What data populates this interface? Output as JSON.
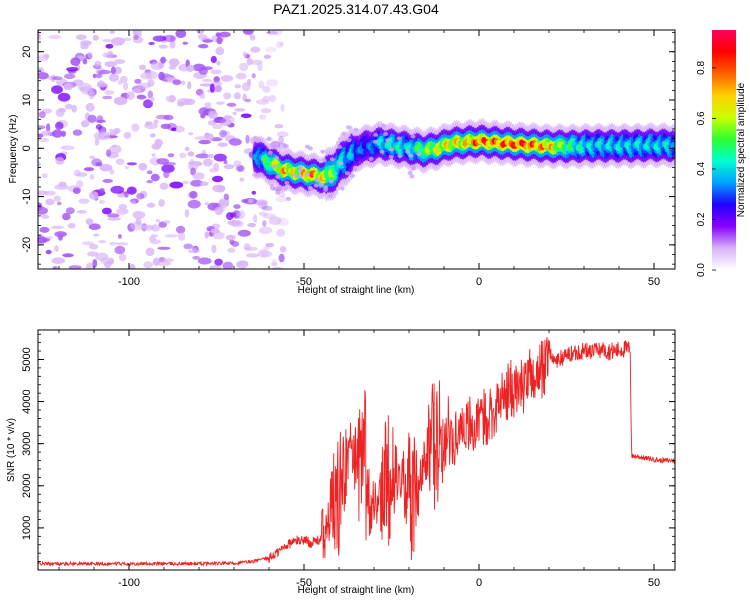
{
  "figure": {
    "title": "PAZ1.2025.314.07.43.G04"
  },
  "chart_data": [
    {
      "type": "heatmap",
      "title": "",
      "xlabel": "Height of straight line (km)",
      "ylabel": "Frequency (Hz)",
      "xlim": [
        -126,
        56
      ],
      "ylim": [
        -25,
        24.5
      ],
      "xticks": [
        -100,
        -50,
        0,
        50
      ],
      "yticks": [
        -20,
        -10,
        0,
        10,
        20
      ],
      "xtick_labels": [
        "-100",
        "-50",
        "0",
        "50"
      ],
      "ytick_labels": [
        "-20",
        "-10",
        "0",
        "10",
        "20"
      ],
      "noise_region_x": [
        -126,
        -60
      ],
      "ridge": {
        "x": [
          -64,
          -60,
          -56,
          -52,
          -48,
          -44,
          -41,
          -39,
          -36,
          -34,
          -31,
          -28,
          -24,
          -20,
          -16,
          -12,
          -8,
          -4,
          0,
          4,
          8,
          12,
          16,
          20,
          24,
          28,
          32,
          36,
          40,
          44,
          48,
          52,
          56
        ],
        "y": [
          -1.5,
          -3.0,
          -4.5,
          -5.0,
          -5.5,
          -6.0,
          -4.5,
          -2.5,
          -1.0,
          0.0,
          0.5,
          1.0,
          0.5,
          0.0,
          -0.5,
          0.0,
          1.0,
          1.2,
          1.5,
          1.2,
          1.0,
          0.8,
          0.6,
          0.4,
          0.4,
          0.4,
          0.5,
          0.5,
          0.5,
          0.5,
          0.6,
          0.6,
          0.6
        ],
        "amplitude": [
          0.35,
          0.6,
          0.8,
          0.7,
          0.85,
          0.7,
          0.55,
          0.45,
          0.4,
          0.35,
          0.35,
          0.45,
          0.5,
          0.45,
          0.6,
          0.7,
          0.75,
          0.75,
          0.9,
          0.85,
          0.9,
          0.95,
          0.85,
          0.8,
          0.6,
          0.5,
          0.45,
          0.45,
          0.45,
          0.45,
          0.45,
          0.45,
          0.45
        ]
      },
      "colorbar": {
        "label": "Normalized spectral amplitude",
        "range": [
          0,
          0.95
        ],
        "ticks": [
          0.0,
          0.2,
          0.4,
          0.6,
          0.8
        ],
        "tick_labels": [
          "0.0",
          "0.2",
          "0.4",
          "0.6",
          "0.8"
        ],
        "colors": [
          "#ffffff",
          "#d8b4f8",
          "#8a00ff",
          "#2000ff",
          "#00a0ff",
          "#00ffd0",
          "#30ff30",
          "#ccff00",
          "#ffd000",
          "#ff6000",
          "#ff0000",
          "#ff0060"
        ]
      }
    },
    {
      "type": "line",
      "title": "",
      "xlabel": "Height of straight line (km)",
      "ylabel": "SNR (10 * v/v)",
      "xlim": [
        -126,
        56
      ],
      "ylim": [
        0,
        5700
      ],
      "xticks": [
        -100,
        -50,
        0,
        50
      ],
      "yticks": [
        1000,
        2000,
        3000,
        4000,
        5000
      ],
      "xtick_labels": [
        "-100",
        "-50",
        "0",
        "50"
      ],
      "ytick_labels": [
        "1000",
        "2000",
        "3000",
        "4000",
        "5000"
      ],
      "color": "#ee2222",
      "series": [
        {
          "name": "SNR",
          "x": [
            -126,
            -110,
            -95,
            -80,
            -70,
            -65,
            -60,
            -57,
            -55,
            -52,
            -50,
            -48,
            -46,
            -44,
            -42,
            -40,
            -38.5,
            -37.5,
            -36.5,
            -35,
            -33,
            -31,
            -29,
            -27,
            -25,
            -23,
            -21,
            -19,
            -17,
            -15,
            -13,
            -11,
            -9,
            -7,
            -5,
            -3,
            -1,
            1,
            3,
            5,
            7,
            9,
            11,
            13,
            15,
            17,
            19,
            20,
            21,
            23,
            25,
            27,
            29,
            31,
            33,
            35,
            37,
            39,
            41,
            42.5,
            43.2,
            43.6,
            45,
            48,
            52,
            56
          ],
          "y": [
            150,
            150,
            150,
            150,
            160,
            200,
            280,
            450,
            600,
            700,
            720,
            650,
            700,
            800,
            1500,
            1800,
            2300,
            2600,
            2800,
            2600,
            2200,
            1700,
            1600,
            2000,
            2200,
            2300,
            2000,
            1800,
            2300,
            2700,
            3000,
            3100,
            3000,
            3100,
            3500,
            3500,
            3300,
            3600,
            3700,
            3900,
            4100,
            4300,
            4300,
            4400,
            4600,
            4700,
            4800,
            5400,
            4950,
            5000,
            5100,
            5150,
            5200,
            5200,
            5200,
            5250,
            5200,
            5200,
            5250,
            5250,
            5200,
            2700,
            2700,
            2650,
            2600,
            2600
          ]
        }
      ]
    }
  ]
}
